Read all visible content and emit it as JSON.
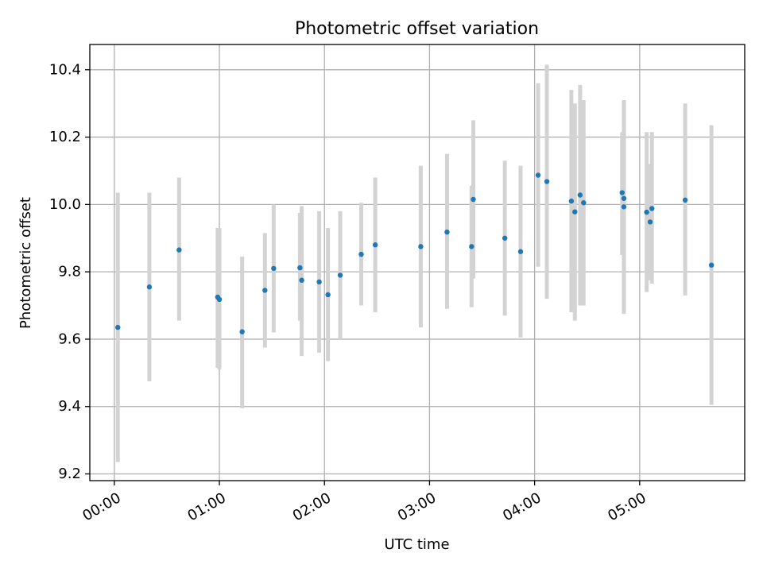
{
  "chart_data": {
    "type": "scatter",
    "title": "Photometric offset variation",
    "xlabel": "UTC time",
    "ylabel": "Photometric offset",
    "xlim": [
      "23:46",
      "06:00"
    ],
    "ylim": [
      9.18,
      10.475
    ],
    "grid": true,
    "x_ticks": [
      "00:00",
      "01:00",
      "02:00",
      "03:00",
      "04:00",
      "05:00"
    ],
    "y_ticks": [
      "9.2",
      "9.4",
      "9.6",
      "9.8",
      "10.0",
      "10.2",
      "10.4"
    ],
    "colors": {
      "point": "#1f77b4",
      "errorbar": "#d3d3d3",
      "grid": "#b0b0b0"
    },
    "points": [
      {
        "x": "00:02",
        "y": 9.635,
        "low": 9.235,
        "high": 10.035
      },
      {
        "x": "00:20",
        "y": 9.755,
        "low": 9.475,
        "high": 10.035
      },
      {
        "x": "00:37",
        "y": 9.865,
        "low": 9.655,
        "high": 10.08
      },
      {
        "x": "00:59",
        "y": 9.725,
        "low": 9.515,
        "high": 9.93
      },
      {
        "x": "01:00",
        "y": 9.718,
        "low": 9.51,
        "high": 9.93
      },
      {
        "x": "01:13",
        "y": 9.622,
        "low": 9.395,
        "high": 9.845
      },
      {
        "x": "01:26",
        "y": 9.745,
        "low": 9.575,
        "high": 9.915
      },
      {
        "x": "01:31",
        "y": 9.81,
        "low": 9.62,
        "high": 10.0
      },
      {
        "x": "01:46",
        "y": 9.812,
        "low": 9.655,
        "high": 9.975
      },
      {
        "x": "01:47",
        "y": 9.775,
        "low": 9.55,
        "high": 9.995
      },
      {
        "x": "01:57",
        "y": 9.77,
        "low": 9.56,
        "high": 9.98
      },
      {
        "x": "02:02",
        "y": 9.732,
        "low": 9.535,
        "high": 9.93
      },
      {
        "x": "02:09",
        "y": 9.79,
        "low": 9.6,
        "high": 9.98
      },
      {
        "x": "02:21",
        "y": 9.852,
        "low": 9.7,
        "high": 10.005
      },
      {
        "x": "02:29",
        "y": 9.88,
        "low": 9.68,
        "high": 10.08
      },
      {
        "x": "02:55",
        "y": 9.875,
        "low": 9.635,
        "high": 10.115
      },
      {
        "x": "03:10",
        "y": 9.918,
        "low": 9.69,
        "high": 10.15
      },
      {
        "x": "03:24",
        "y": 9.875,
        "low": 9.695,
        "high": 10.055
      },
      {
        "x": "03:25",
        "y": 10.015,
        "low": 9.78,
        "high": 10.25
      },
      {
        "x": "03:43",
        "y": 9.9,
        "low": 9.67,
        "high": 10.13
      },
      {
        "x": "03:52",
        "y": 9.86,
        "low": 9.605,
        "high": 10.115
      },
      {
        "x": "04:02",
        "y": 10.087,
        "low": 9.815,
        "high": 10.36
      },
      {
        "x": "04:07",
        "y": 10.068,
        "low": 9.72,
        "high": 10.415
      },
      {
        "x": "04:21",
        "y": 10.01,
        "low": 9.68,
        "high": 10.34
      },
      {
        "x": "04:23",
        "y": 9.978,
        "low": 9.655,
        "high": 10.3
      },
      {
        "x": "04:26",
        "y": 10.028,
        "low": 9.7,
        "high": 10.355
      },
      {
        "x": "04:28",
        "y": 10.005,
        "low": 9.7,
        "high": 10.31
      },
      {
        "x": "04:50",
        "y": 10.035,
        "low": 9.85,
        "high": 10.215
      },
      {
        "x": "04:51",
        "y": 10.018,
        "low": 9.72,
        "high": 10.31
      },
      {
        "x": "04:51",
        "y": 9.993,
        "low": 9.675,
        "high": 10.31
      },
      {
        "x": "05:04",
        "y": 9.977,
        "low": 9.74,
        "high": 10.215
      },
      {
        "x": "05:06",
        "y": 9.948,
        "low": 9.775,
        "high": 10.12
      },
      {
        "x": "05:07",
        "y": 9.988,
        "low": 9.765,
        "high": 10.215
      },
      {
        "x": "05:26",
        "y": 10.013,
        "low": 9.73,
        "high": 10.3
      },
      {
        "x": "05:41",
        "y": 9.82,
        "low": 9.405,
        "high": 10.235
      }
    ]
  }
}
